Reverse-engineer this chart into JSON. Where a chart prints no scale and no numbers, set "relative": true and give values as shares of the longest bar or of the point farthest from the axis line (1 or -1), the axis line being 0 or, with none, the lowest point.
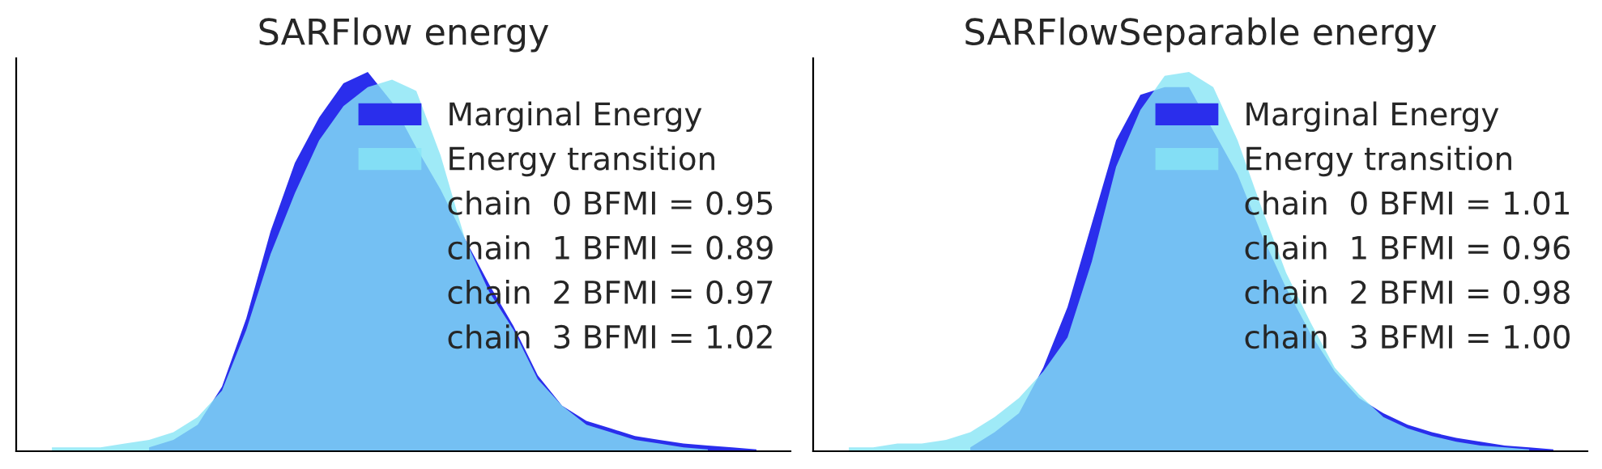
{
  "chart_data": [
    {
      "type": "area",
      "title": "SARFlow energy",
      "relative": true,
      "legend": "top right",
      "categories": [
        null,
        null,
        null,
        null,
        null,
        null,
        null,
        null,
        null,
        null,
        null,
        null,
        null,
        null,
        null,
        null,
        null,
        null,
        null,
        null,
        null,
        null,
        null,
        null,
        null,
        null,
        null,
        null,
        null,
        null
      ],
      "series": [
        {
          "name": "Marginal Energy",
          "color": "#2a2eec",
          "values": [
            null,
            null,
            null,
            null,
            0.01,
            0.03,
            0.07,
            0.17,
            0.35,
            0.58,
            0.76,
            0.88,
            0.97,
            1.0,
            0.92,
            0.8,
            0.69,
            0.56,
            0.44,
            0.33,
            0.2,
            0.12,
            0.08,
            0.06,
            0.04,
            0.03,
            0.02,
            0.015,
            0.01,
            0.005
          ]
        },
        {
          "name": "Energy transition",
          "color": "#87e5f5",
          "values": [
            0.01,
            0.01,
            0.01,
            0.02,
            0.03,
            0.05,
            0.09,
            0.16,
            0.32,
            0.52,
            0.68,
            0.82,
            0.91,
            0.96,
            0.98,
            0.95,
            0.78,
            0.56,
            0.42,
            0.32,
            0.19,
            0.12,
            0.07,
            0.05,
            0.03,
            0.02,
            0.01,
            0.005,
            null,
            null
          ]
        }
      ],
      "annotations": [
        "chain  0 BFMI = 0.95",
        "chain  1 BFMI = 0.89",
        "chain  2 BFMI = 0.97",
        "chain  3 BFMI = 1.02"
      ]
    },
    {
      "type": "area",
      "title": "SARFlowSeparable energy",
      "relative": true,
      "legend": "top right",
      "categories": [
        null,
        null,
        null,
        null,
        null,
        null,
        null,
        null,
        null,
        null,
        null,
        null,
        null,
        null,
        null,
        null,
        null,
        null,
        null,
        null,
        null,
        null,
        null,
        null,
        null,
        null,
        null,
        null,
        null,
        null
      ],
      "series": [
        {
          "name": "Marginal Energy",
          "color": "#2a2eec",
          "values": [
            null,
            null,
            null,
            null,
            null,
            0.01,
            0.05,
            0.1,
            0.22,
            0.38,
            0.6,
            0.82,
            0.94,
            0.96,
            0.96,
            null,
            0.73,
            0.57,
            0.43,
            0.31,
            0.21,
            0.14,
            0.1,
            0.07,
            0.05,
            0.035,
            0.025,
            0.015,
            0.01,
            0.005
          ]
        },
        {
          "name": "Energy transition",
          "color": "#87e5f5",
          "values": [
            0.01,
            0.01,
            0.02,
            0.02,
            0.03,
            0.05,
            0.09,
            0.14,
            0.21,
            0.3,
            0.5,
            0.75,
            0.9,
            0.99,
            1.0,
            0.96,
            0.82,
            0.64,
            0.47,
            0.34,
            0.22,
            0.15,
            0.09,
            0.06,
            0.04,
            0.025,
            0.015,
            0.01,
            0.005,
            null
          ]
        }
      ],
      "annotations": [
        "chain  0 BFMI = 1.01",
        "chain  1 BFMI = 0.96",
        "chain  2 BFMI = 0.98",
        "chain  3 BFMI = 1.00"
      ]
    }
  ]
}
